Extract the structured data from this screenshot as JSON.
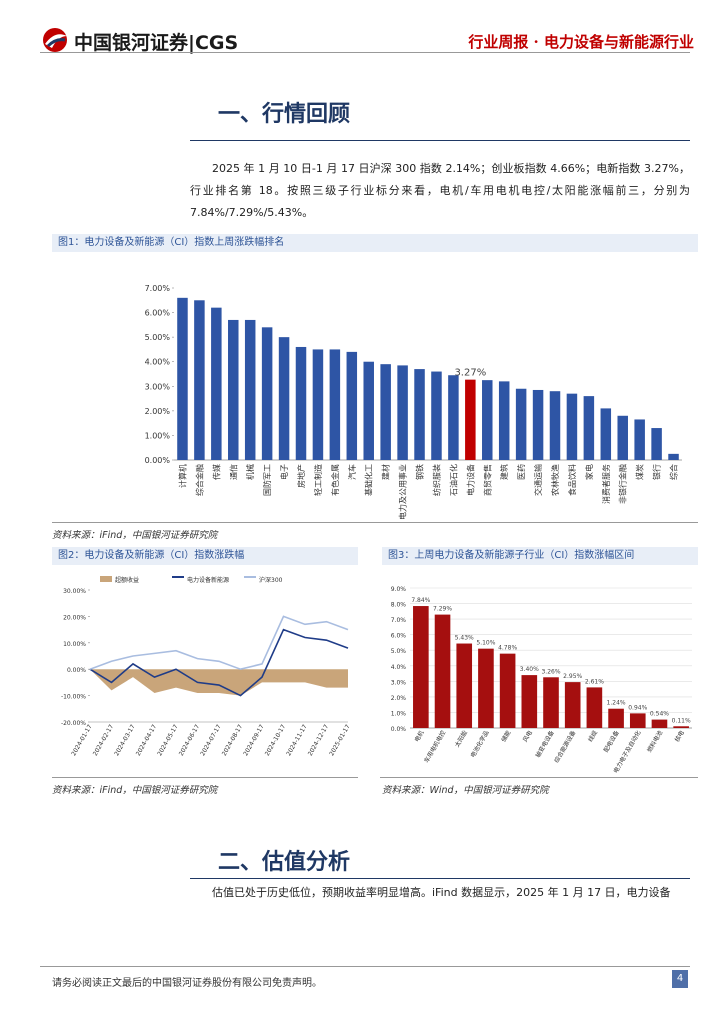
{
  "header": {
    "logo": "中国银河证券|CGS",
    "title": "行业周报 · 电力设备与新能源行业"
  },
  "sections": [
    {
      "title": "一、行情回顾",
      "paragraph": "2025 年 1 月 10 日-1 月 17 日沪深 300 指数 2.14%；创业板指数 4.66%；电新指数 3.27%，行业排名第 18。按照三级子行业标分来看，电机/车用电机电控/太阳能涨幅前三，分别为 7.84%/7.29%/5.43%。"
    },
    {
      "title": "二、估值分析",
      "paragraph": "估值已处于历史低位，预期收益率明显增高。iFind 数据显示，2025 年 1 月 17 日，电力设备"
    }
  ],
  "footer": {
    "disclaimer": "请务必阅读正文最后的中国银河证券股份有限公司免责声明。",
    "page": "4"
  },
  "chart_data": [
    {
      "type": "bar",
      "title": "图1：电力设备及新能源（CI）指数上周涨跌幅排名",
      "source": "资料来源：iFind，中国银河证券研究院",
      "categories": [
        "计算机",
        "综合金融",
        "传媒",
        "通信",
        "机械",
        "国防军工",
        "电子",
        "房地产",
        "轻工制造",
        "有色金属",
        "汽车",
        "基础化工",
        "建材",
        "电力及公用事业",
        "钢铁",
        "纺织服装",
        "石油石化",
        "电力设备",
        "商贸零售",
        "建筑",
        "医药",
        "交通运输",
        "农林牧渔",
        "食品饮料",
        "家电",
        "消费者服务",
        "非银行金融",
        "煤炭",
        "银行",
        "综合"
      ],
      "values": [
        6.6,
        6.5,
        6.2,
        5.7,
        5.7,
        5.4,
        5.0,
        4.6,
        4.5,
        4.5,
        4.4,
        4.0,
        3.9,
        3.85,
        3.7,
        3.6,
        3.45,
        3.27,
        3.25,
        3.2,
        2.9,
        2.85,
        2.8,
        2.7,
        2.6,
        2.1,
        1.8,
        1.65,
        1.3,
        0.25
      ],
      "value_labels": [
        null,
        null,
        null,
        null,
        null,
        null,
        null,
        null,
        null,
        null,
        null,
        null,
        null,
        null,
        null,
        null,
        null,
        "3.27%",
        null,
        null,
        null,
        null,
        null,
        null,
        null,
        null,
        null,
        null,
        null,
        null
      ],
      "colors": [
        "#2e55a5",
        "#2e55a5",
        "#2e55a5",
        "#2e55a5",
        "#2e55a5",
        "#2e55a5",
        "#2e55a5",
        "#2e55a5",
        "#2e55a5",
        "#2e55a5",
        "#2e55a5",
        "#2e55a5",
        "#2e55a5",
        "#2e55a5",
        "#2e55a5",
        "#2e55a5",
        "#2e55a5",
        "#c00000",
        "#2e55a5",
        "#2e55a5",
        "#2e55a5",
        "#2e55a5",
        "#2e55a5",
        "#2e55a5",
        "#2e55a5",
        "#2e55a5",
        "#2e55a5",
        "#2e55a5",
        "#2e55a5",
        "#2e55a5"
      ],
      "ylim": [
        0,
        7
      ],
      "yticks": [
        {
          "value": 0,
          "label": "0.00%"
        },
        {
          "value": 1,
          "label": "1.00%"
        },
        {
          "value": 2,
          "label": "2.00%"
        },
        {
          "value": 3,
          "label": "3.00%"
        },
        {
          "value": 4,
          "label": "4.00%"
        },
        {
          "value": 5,
          "label": "5.00%"
        },
        {
          "value": 6,
          "label": "6.00%"
        },
        {
          "value": 7,
          "label": "7.00%"
        }
      ],
      "grid": false
    },
    {
      "type": "line",
      "title": "图2：电力设备及新能源（CI）指数涨跌幅",
      "source": "资料来源：iFind，中国银河证券研究院",
      "categories": [
        "2024-01-17",
        "2024-02-17",
        "2024-03-17",
        "2024-04-17",
        "2024-05-17",
        "2024-06-17",
        "2024-07-17",
        "2024-08-17",
        "2024-09-17",
        "2024-10-17",
        "2024-11-17",
        "2024-12-17",
        "2025-01-17"
      ],
      "series": [
        {
          "name": "超额收益",
          "color": "#c9a57a",
          "style": "area",
          "values": [
            0,
            -8,
            -3,
            -9,
            -7,
            -9,
            -9,
            -10,
            -5,
            -5,
            -5,
            -7,
            -7
          ]
        },
        {
          "name": "电力设备新能源",
          "color": "#1f3c88",
          "style": "line",
          "values": [
            0,
            -5,
            2,
            -3,
            0,
            -5,
            -6,
            -10,
            -3,
            15,
            12,
            11,
            8
          ]
        },
        {
          "name": "沪深300",
          "color": "#a9bde0",
          "style": "line",
          "values": [
            0,
            3,
            5,
            6,
            7,
            4,
            3,
            0,
            2,
            20,
            17,
            18,
            15
          ]
        }
      ],
      "ylim": [
        -20,
        30
      ],
      "yticks": [
        {
          "value": -20,
          "label": "-20.00%"
        },
        {
          "value": -10,
          "label": "-10.00%"
        },
        {
          "value": 0,
          "label": "0.00%"
        },
        {
          "value": 10,
          "label": "10.00%"
        },
        {
          "value": 20,
          "label": "20.00%"
        },
        {
          "value": 30,
          "label": "30.00%"
        }
      ],
      "grid": false
    },
    {
      "type": "bar",
      "title": "图3：上周电力设备及新能源子行业（CI）指数涨幅区间",
      "source": "资料来源：Wind，中国银河证券研究院",
      "categories": [
        "电机",
        "车用电机电控",
        "太阳能",
        "电池化学品",
        "储能",
        "风电",
        "输变电设备",
        "综合能源设备",
        "线缆",
        "配电设备",
        "电力电子及自动化",
        "燃料电池",
        "核电"
      ],
      "values": [
        7.84,
        7.29,
        5.43,
        5.1,
        4.78,
        3.4,
        3.26,
        2.95,
        2.61,
        1.24,
        0.94,
        0.54,
        0.11
      ],
      "value_labels": [
        "7.84%",
        "7.29%",
        "5.43%",
        "5.10%",
        "4.78%",
        "3.40%",
        "3.26%",
        "2.95%",
        "2.61%",
        "1.24%",
        "0.94%",
        "0.54%",
        "0.11%"
      ],
      "color": "#a50f0f",
      "ylim": [
        0,
        9
      ],
      "yticks": [
        {
          "value": 0,
          "label": "0.0%"
        },
        {
          "value": 1,
          "label": "1.0%"
        },
        {
          "value": 2,
          "label": "2.0%"
        },
        {
          "value": 3,
          "label": "3.0%"
        },
        {
          "value": 4,
          "label": "4.0%"
        },
        {
          "value": 5,
          "label": "5.0%"
        },
        {
          "value": 6,
          "label": "6.0%"
        },
        {
          "value": 7,
          "label": "7.0%"
        },
        {
          "value": 8,
          "label": "8.0%"
        },
        {
          "value": 9,
          "label": "9.0%"
        }
      ],
      "grid": true
    }
  ]
}
